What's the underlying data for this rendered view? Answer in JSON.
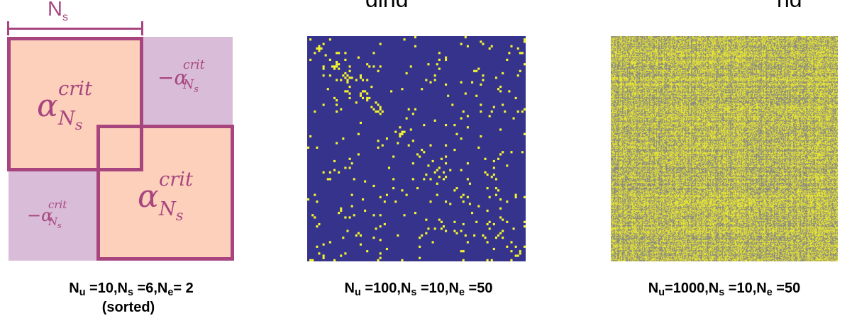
{
  "colors": {
    "block_on": "#fcd0bb",
    "block_off": "#d9bdd8",
    "frame": "#a8457f",
    "label": "#a8457f",
    "matrix_bg": "#35338c",
    "matrix_fg": "#f6f52f",
    "dense_bg": "#d8d540",
    "dense_fg": "#8a8a82"
  },
  "top_cutoff_text": {
    "left": "ging",
    "right": "ng"
  },
  "schematic": {
    "ns_label": {
      "main": "N",
      "sub": "s"
    },
    "diag_term": {
      "base": "α",
      "sup": "crit",
      "sub_main": "N",
      "sub_sub": "s"
    },
    "offdiag_term": {
      "sign": "−",
      "base": "α",
      "sup": "crit",
      "sub_main": "N",
      "sub_sub": "s"
    }
  },
  "captions": [
    {
      "parts": [
        [
          "N",
          "u",
          " =10,"
        ],
        [
          "N",
          "s",
          " =6,"
        ],
        [
          "N",
          "e",
          "= 2"
        ]
      ],
      "line2": "(sorted)"
    },
    {
      "parts": [
        [
          "N",
          "u",
          " =100,"
        ],
        [
          "N",
          "s",
          " =10,"
        ],
        [
          "N",
          "e",
          " =50"
        ]
      ]
    },
    {
      "parts": [
        [
          "N",
          "u",
          "=1000,"
        ],
        [
          "N",
          "s",
          " =10,"
        ],
        [
          "N",
          "e",
          " =50"
        ]
      ]
    }
  ]
}
